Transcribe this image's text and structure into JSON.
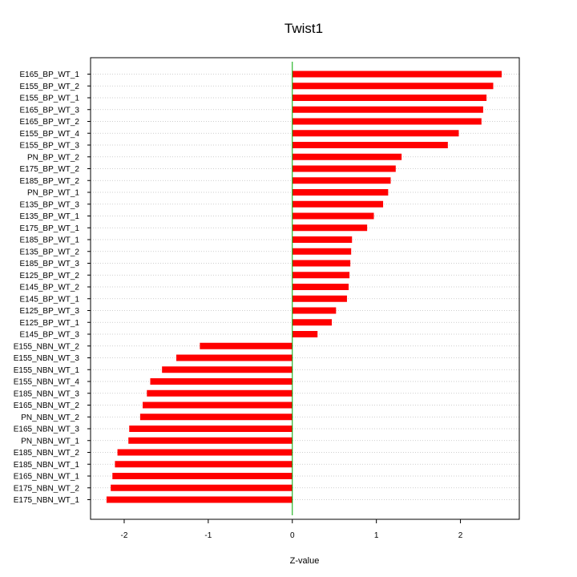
{
  "chart_data": {
    "type": "bar",
    "orientation": "horizontal",
    "title": "Twist1",
    "xlabel": "Z-value",
    "ylabel": "",
    "xlim": [
      -2.4,
      2.7
    ],
    "xticks": [
      -2,
      -1,
      0,
      1,
      2
    ],
    "grid": "horizontal dotted",
    "colors": {
      "bar": "#ff0000",
      "zero_line": "#00aa00",
      "grid": "#bfbfbf"
    },
    "categories": [
      "E165_BP_WT_1",
      "E155_BP_WT_2",
      "E155_BP_WT_1",
      "E165_BP_WT_3",
      "E165_BP_WT_2",
      "E155_BP_WT_4",
      "E155_BP_WT_3",
      "PN_BP_WT_2",
      "E175_BP_WT_2",
      "E185_BP_WT_2",
      "PN_BP_WT_1",
      "E135_BP_WT_3",
      "E135_BP_WT_1",
      "E175_BP_WT_1",
      "E185_BP_WT_1",
      "E135_BP_WT_2",
      "E185_BP_WT_3",
      "E125_BP_WT_2",
      "E145_BP_WT_2",
      "E145_BP_WT_1",
      "E125_BP_WT_3",
      "E125_BP_WT_1",
      "E145_BP_WT_3",
      "E155_NBN_WT_2",
      "E155_NBN_WT_3",
      "E155_NBN_WT_1",
      "E155_NBN_WT_4",
      "E185_NBN_WT_3",
      "E165_NBN_WT_2",
      "PN_NBN_WT_2",
      "E165_NBN_WT_3",
      "PN_NBN_WT_1",
      "E185_NBN_WT_2",
      "E185_NBN_WT_1",
      "E165_NBN_WT_1",
      "E175_NBN_WT_2",
      "E175_NBN_WT_1"
    ],
    "values": [
      2.49,
      2.39,
      2.31,
      2.27,
      2.25,
      1.98,
      1.85,
      1.3,
      1.23,
      1.17,
      1.14,
      1.08,
      0.97,
      0.89,
      0.71,
      0.7,
      0.69,
      0.68,
      0.67,
      0.65,
      0.52,
      0.47,
      0.3,
      -1.1,
      -1.38,
      -1.55,
      -1.69,
      -1.73,
      -1.78,
      -1.81,
      -1.94,
      -1.95,
      -2.08,
      -2.11,
      -2.14,
      -2.16,
      -2.21
    ]
  }
}
